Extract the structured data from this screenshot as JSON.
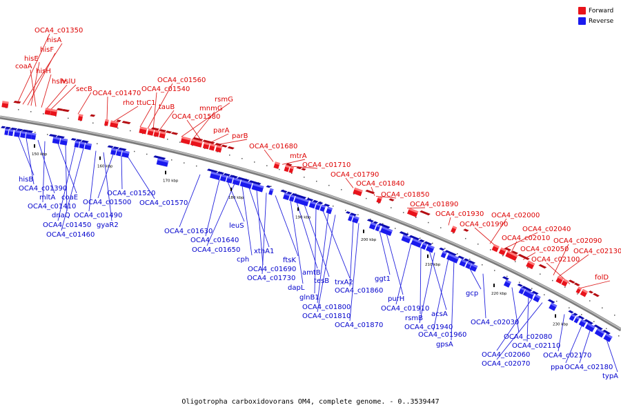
{
  "caption": "Oligotropha carboxidovorans OM4, complete genome. - 0..3539447",
  "legend": {
    "forward": {
      "label": "Forward",
      "color": "#e8131b"
    },
    "reverse": {
      "label": "Reverse",
      "color": "#1a1aee"
    }
  },
  "axis": {
    "ticks": [
      "150 kbp",
      "160 kbp",
      "170 kbp",
      "180 kbp",
      "190 kbp",
      "200 kbp",
      "210 kbp",
      "220 kbp",
      "230 kbp"
    ]
  },
  "forward_labels": [
    "OCA4_c01350",
    "hisA",
    "hisF",
    "hisE",
    "coaA",
    "hisH",
    "hslV",
    "hslU",
    "secB",
    "OCA4_c01470",
    "rho",
    "ttuC1",
    "OCA4_c01560",
    "OCA4_c01540",
    "tauB",
    "rsmG",
    "mnmG",
    "OCA4_c01580",
    "parA",
    "parB",
    "OCA4_c01680",
    "mtrA",
    "OCA4_c01710",
    "OCA4_c01790",
    "OCA4_c01840",
    "OCA4_c01850",
    "OCA4_c01890",
    "OCA4_c01930",
    "OCA4_c02000",
    "OCA4_c01990",
    "OCA4_c02040",
    "OCA4_c02010",
    "OCA4_c02050",
    "OCA4_c02090",
    "OCA4_c02130",
    "OCA4_c02100",
    "folD"
  ],
  "reverse_labels": [
    "hisB",
    "OCA4_c01390",
    "mltA",
    "OCA4_c01410",
    "coaE",
    "dnaQ",
    "OCA4_c01450",
    "OCA4_c01460",
    "OCA4_c01490",
    "gyaR2",
    "OCA4_c01500",
    "OCA4_c01520",
    "OCA4_c01570",
    "OCA4_c01630",
    "OCA4_c01640",
    "leuS",
    "OCA4_c01650",
    "cph",
    "xthA1",
    "OCA4_c01690",
    "OCA4_c01730",
    "ftsK",
    "dapL",
    "amtB",
    "tesB",
    "glnB1",
    "trxA2",
    "OCA4_c01800",
    "OCA4_c01810",
    "OCA4_c01860",
    "OCA4_c01870",
    "ggt1",
    "purH",
    "OCA4_c01910",
    "rsmB",
    "acsA",
    "OCA4_c01940",
    "OCA4_c01960",
    "gpsA",
    "gcp",
    "OCA4_c02030",
    "OCA4_c02080",
    "OCA4_c02110",
    "OCA4_c02060",
    "OCA4_c02070",
    "OCA4_c02170",
    "ppa",
    "OCA4_c02180",
    "typA"
  ]
}
